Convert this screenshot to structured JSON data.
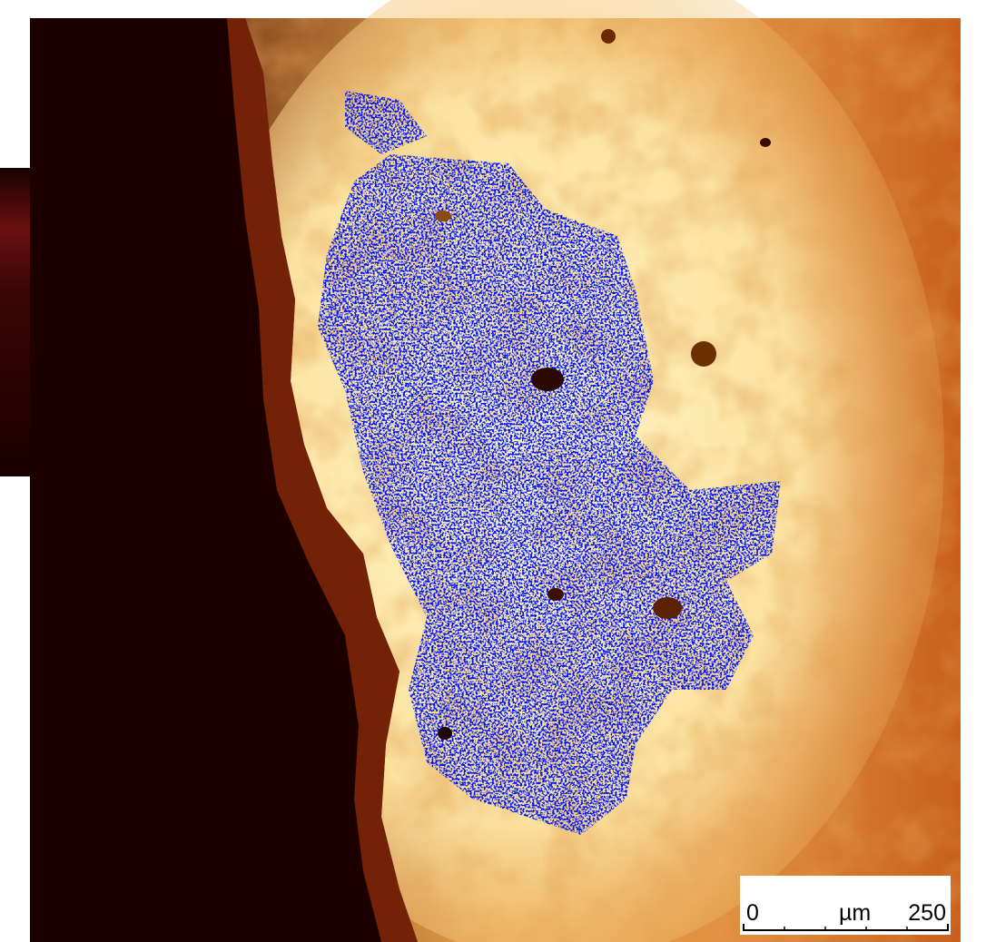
{
  "scale_bar": {
    "start": "0",
    "unit": "µm",
    "end": "250"
  }
}
